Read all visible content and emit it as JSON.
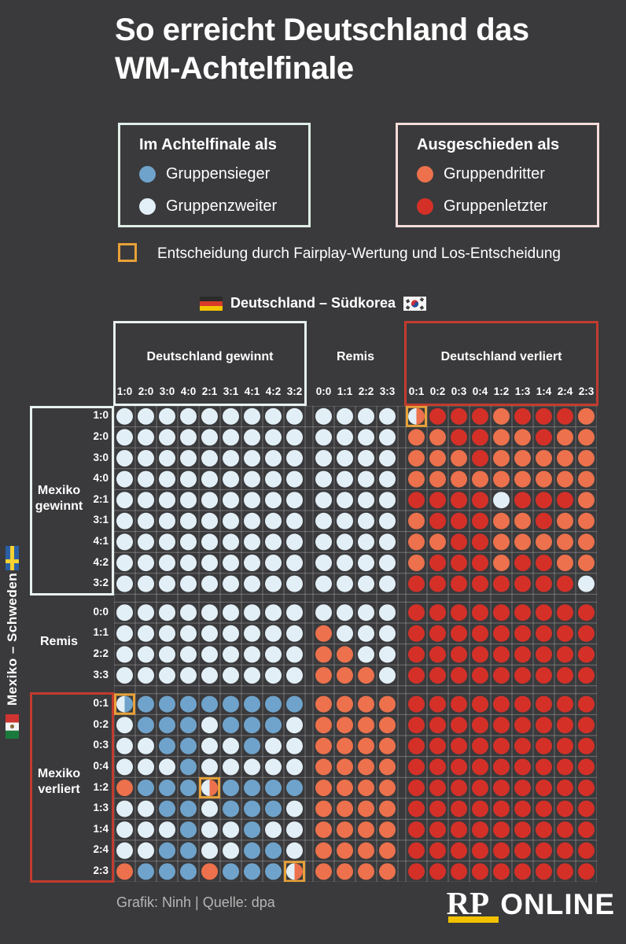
{
  "title": {
    "line1": "So erreicht Deutschland das",
    "line2": "WM-Achtelfinale"
  },
  "legend_qualified": {
    "title": "Im Achtelfinale als",
    "items": [
      {
        "label": "Gruppensieger",
        "color_key": "B"
      },
      {
        "label": "Gruppenzweiter",
        "color_key": "W"
      }
    ]
  },
  "legend_eliminated": {
    "title": "Ausgeschieden als",
    "items": [
      {
        "label": "Gruppendritter",
        "color_key": "O"
      },
      {
        "label": "Gruppenletzter",
        "color_key": "R"
      }
    ]
  },
  "legend_fairplay": {
    "label": "Entscheidung durch Fairplay-Wertung und Los-Entscheidung"
  },
  "match_header": {
    "label": "Deutschland – Südkorea"
  },
  "side_header": {
    "label": "Mexiko – Schweden"
  },
  "footer": {
    "credit": "Grafik: Ninh | Quelle: dpa",
    "logo_rp": "RP",
    "logo_online": "ONLINE"
  },
  "colors": {
    "background": "#3a3a3c",
    "dot": {
      "B": "#6fa3cb",
      "W": "#e2eff6",
      "O": "#ec714c",
      "R": "#d43028"
    },
    "fairplay_box": "#e8a138",
    "win_box_border": "#e7f1ee",
    "loss_box_border": "#c23b2e",
    "accent_yellow": "#f2c200",
    "grid_line": "rgba(255,255,255,0.28)"
  },
  "chart_data": {
    "type": "heatmap",
    "title": "So erreicht Deutschland das WM-Achtelfinale",
    "x_axis_label": "Deutschland – Südkorea",
    "y_axis_label": "Mexiko – Schweden",
    "legend": {
      "B": "Im Achtelfinale als Gruppensieger",
      "W": "Im Achtelfinale als Gruppenzweiter",
      "O": "Ausgeschieden als Gruppendritter",
      "R": "Ausgeschieden als Gruppenletzter",
      "split": "Entscheidung durch Fairplay-Wertung und Los-Entscheidung (gelb umrandet)"
    },
    "col_groups": [
      {
        "label": "Deutschland gewinnt",
        "result": "win",
        "scores": [
          "1:0",
          "2:0",
          "3:0",
          "4:0",
          "2:1",
          "3:1",
          "4:1",
          "4:2",
          "3:2"
        ]
      },
      {
        "label": "Remis",
        "result": "draw",
        "scores": [
          "0:0",
          "1:1",
          "2:2",
          "3:3"
        ]
      },
      {
        "label": "Deutschland verliert",
        "result": "loss",
        "scores": [
          "0:1",
          "0:2",
          "0:3",
          "0:4",
          "1:2",
          "1:3",
          "1:4",
          "2:4",
          "2:3"
        ]
      }
    ],
    "row_groups": [
      {
        "label": "Mexiko gewinnt",
        "result": "win",
        "scores": [
          "1:0",
          "2:0",
          "3:0",
          "4:0",
          "2:1",
          "3:1",
          "4:1",
          "4:2",
          "3:2"
        ]
      },
      {
        "label": "Remis",
        "result": "draw",
        "scores": [
          "0:0",
          "1:1",
          "2:2",
          "3:3"
        ]
      },
      {
        "label": "Mexiko verliert",
        "result": "loss",
        "scores": [
          "0:1",
          "0:2",
          "0:3",
          "0:4",
          "1:2",
          "1:3",
          "1:4",
          "2:4",
          "2:3"
        ]
      }
    ],
    "fairplay_cells": [
      {
        "mexiko_schweden": "1:0",
        "deutschland_suedkorea": "0:1",
        "outcome": "W|O"
      },
      {
        "mexiko_schweden": "0:1",
        "deutschland_suedkorea": "1:0",
        "outcome": "W|B"
      },
      {
        "mexiko_schweden": "1:2",
        "deutschland_suedkorea": "2:1",
        "outcome": "W|O"
      },
      {
        "mexiko_schweden": "2:3",
        "deutschland_suedkorea": "3:2",
        "outcome": "W|O"
      }
    ],
    "matrix": [
      {
        "row": "1:0",
        "cells": [
          "W",
          "W",
          "W",
          "W",
          "W",
          "W",
          "W",
          "W",
          "W",
          "W",
          "W",
          "W",
          "W",
          "W|O",
          "R",
          "R",
          "R",
          "O",
          "R",
          "R",
          "R",
          "O"
        ]
      },
      {
        "row": "2:0",
        "cells": [
          "W",
          "W",
          "W",
          "W",
          "W",
          "W",
          "W",
          "W",
          "W",
          "W",
          "W",
          "W",
          "W",
          "O",
          "O",
          "R",
          "R",
          "O",
          "O",
          "R",
          "O",
          "O"
        ]
      },
      {
        "row": "3:0",
        "cells": [
          "W",
          "W",
          "W",
          "W",
          "W",
          "W",
          "W",
          "W",
          "W",
          "W",
          "W",
          "W",
          "W",
          "O",
          "O",
          "O",
          "R",
          "O",
          "O",
          "O",
          "O",
          "O"
        ]
      },
      {
        "row": "4:0",
        "cells": [
          "W",
          "W",
          "W",
          "W",
          "W",
          "W",
          "W",
          "W",
          "W",
          "W",
          "W",
          "W",
          "W",
          "O",
          "O",
          "O",
          "O",
          "O",
          "O",
          "O",
          "O",
          "O"
        ]
      },
      {
        "row": "2:1",
        "cells": [
          "W",
          "W",
          "W",
          "W",
          "W",
          "W",
          "W",
          "W",
          "W",
          "W",
          "W",
          "W",
          "W",
          "R",
          "R",
          "R",
          "R",
          "W",
          "R",
          "R",
          "R",
          "O"
        ]
      },
      {
        "row": "3:1",
        "cells": [
          "W",
          "W",
          "W",
          "W",
          "W",
          "W",
          "W",
          "W",
          "W",
          "W",
          "W",
          "W",
          "W",
          "O",
          "R",
          "R",
          "R",
          "O",
          "O",
          "R",
          "O",
          "O"
        ]
      },
      {
        "row": "4:1",
        "cells": [
          "W",
          "W",
          "W",
          "W",
          "W",
          "W",
          "W",
          "W",
          "W",
          "W",
          "W",
          "W",
          "W",
          "O",
          "O",
          "R",
          "R",
          "O",
          "O",
          "O",
          "O",
          "O"
        ]
      },
      {
        "row": "4:2",
        "cells": [
          "W",
          "W",
          "W",
          "W",
          "W",
          "W",
          "W",
          "W",
          "W",
          "W",
          "W",
          "W",
          "W",
          "O",
          "R",
          "R",
          "R",
          "O",
          "R",
          "R",
          "O",
          "O"
        ]
      },
      {
        "row": "3:2",
        "cells": [
          "W",
          "W",
          "W",
          "W",
          "W",
          "W",
          "W",
          "W",
          "W",
          "W",
          "W",
          "W",
          "W",
          "R",
          "R",
          "R",
          "R",
          "R",
          "R",
          "R",
          "R",
          "W"
        ]
      },
      {
        "row": "0:0",
        "cells": [
          "W",
          "W",
          "W",
          "W",
          "W",
          "W",
          "W",
          "W",
          "W",
          "W",
          "W",
          "W",
          "W",
          "R",
          "R",
          "R",
          "R",
          "R",
          "R",
          "R",
          "R",
          "R"
        ]
      },
      {
        "row": "1:1",
        "cells": [
          "W",
          "W",
          "W",
          "W",
          "W",
          "W",
          "W",
          "W",
          "W",
          "O",
          "W",
          "W",
          "W",
          "R",
          "R",
          "R",
          "R",
          "R",
          "R",
          "R",
          "R",
          "R"
        ]
      },
      {
        "row": "2:2",
        "cells": [
          "W",
          "W",
          "W",
          "W",
          "W",
          "W",
          "W",
          "W",
          "W",
          "O",
          "O",
          "W",
          "W",
          "R",
          "R",
          "R",
          "R",
          "R",
          "R",
          "R",
          "R",
          "R"
        ]
      },
      {
        "row": "3:3",
        "cells": [
          "W",
          "W",
          "W",
          "W",
          "W",
          "W",
          "W",
          "W",
          "W",
          "O",
          "O",
          "O",
          "W",
          "R",
          "R",
          "R",
          "R",
          "R",
          "R",
          "R",
          "R",
          "R"
        ]
      },
      {
        "row": "0:1",
        "cells": [
          "W|B",
          "B",
          "B",
          "B",
          "B",
          "B",
          "B",
          "B",
          "B",
          "O",
          "O",
          "O",
          "O",
          "R",
          "R",
          "R",
          "R",
          "R",
          "R",
          "R",
          "R",
          "R"
        ]
      },
      {
        "row": "0:2",
        "cells": [
          "W",
          "B",
          "B",
          "B",
          "W",
          "B",
          "B",
          "B",
          "W",
          "O",
          "O",
          "O",
          "O",
          "R",
          "R",
          "R",
          "R",
          "R",
          "R",
          "R",
          "R",
          "R"
        ]
      },
      {
        "row": "0:3",
        "cells": [
          "W",
          "W",
          "B",
          "B",
          "W",
          "W",
          "B",
          "W",
          "W",
          "O",
          "O",
          "O",
          "O",
          "R",
          "R",
          "R",
          "R",
          "R",
          "R",
          "R",
          "R",
          "R"
        ]
      },
      {
        "row": "0:4",
        "cells": [
          "W",
          "W",
          "W",
          "B",
          "W",
          "W",
          "W",
          "W",
          "W",
          "O",
          "O",
          "O",
          "O",
          "R",
          "R",
          "R",
          "R",
          "R",
          "R",
          "R",
          "R",
          "R"
        ]
      },
      {
        "row": "1:2",
        "cells": [
          "O",
          "B",
          "B",
          "B",
          "W|O",
          "B",
          "B",
          "B",
          "B",
          "O",
          "O",
          "O",
          "O",
          "R",
          "R",
          "R",
          "R",
          "R",
          "R",
          "R",
          "R",
          "R"
        ]
      },
      {
        "row": "1:3",
        "cells": [
          "W",
          "W",
          "B",
          "B",
          "W",
          "B",
          "B",
          "B",
          "W",
          "O",
          "O",
          "O",
          "O",
          "R",
          "R",
          "R",
          "R",
          "R",
          "R",
          "R",
          "R",
          "R"
        ]
      },
      {
        "row": "1:4",
        "cells": [
          "W",
          "W",
          "W",
          "B",
          "W",
          "W",
          "B",
          "W",
          "W",
          "O",
          "O",
          "O",
          "O",
          "R",
          "R",
          "R",
          "R",
          "R",
          "R",
          "R",
          "R",
          "R"
        ]
      },
      {
        "row": "2:4",
        "cells": [
          "W",
          "W",
          "B",
          "B",
          "W",
          "W",
          "B",
          "B",
          "W",
          "O",
          "O",
          "O",
          "O",
          "R",
          "R",
          "R",
          "R",
          "R",
          "R",
          "R",
          "R",
          "R"
        ]
      },
      {
        "row": "2:3",
        "cells": [
          "O",
          "B",
          "B",
          "B",
          "O",
          "B",
          "B",
          "B",
          "W|O",
          "O",
          "O",
          "O",
          "O",
          "R",
          "R",
          "R",
          "R",
          "R",
          "R",
          "R",
          "R",
          "R"
        ]
      }
    ]
  }
}
